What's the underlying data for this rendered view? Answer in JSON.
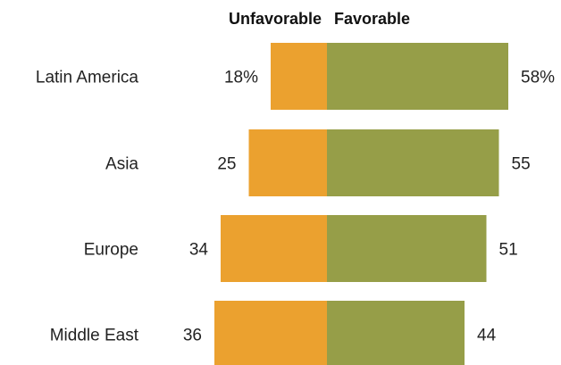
{
  "chart_data": {
    "type": "bar",
    "orientation": "horizontal-diverging",
    "categories": [
      "Latin America",
      "Asia",
      "Europe",
      "Middle East"
    ],
    "series": [
      {
        "name": "Unfavorable",
        "values": [
          18,
          25,
          34,
          36
        ],
        "color": "#EBA12F"
      },
      {
        "name": "Favorable",
        "values": [
          58,
          55,
          51,
          44
        ],
        "color": "#969E48"
      }
    ],
    "value_labels": {
      "Unfavorable": [
        "18%",
        "25",
        "34",
        "36"
      ],
      "Favorable": [
        "58%",
        "55",
        "51",
        "44"
      ]
    },
    "legend_placement": "top",
    "grid": false
  }
}
